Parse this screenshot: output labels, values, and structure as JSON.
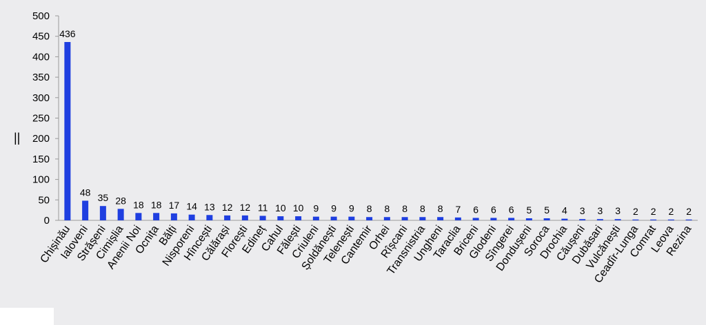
{
  "chart_data": {
    "type": "bar",
    "title": "",
    "xlabel": "",
    "ylabel": "",
    "ylim": [
      0,
      500
    ],
    "yticks": [
      0,
      50,
      100,
      150,
      200,
      250,
      300,
      350,
      400,
      450,
      500
    ],
    "ylabel_glyph": "||",
    "grid": false,
    "legend": "none",
    "bar_color": "#1f3fe0",
    "categories": [
      "Chișinău",
      "Ialoveni",
      "Strășeni",
      "Cimișlia",
      "Anenii Noi",
      "Ocnița",
      "Bălți",
      "Nisporeni",
      "Hîncești",
      "Călărași",
      "Florești",
      "Edineț",
      "Cahul",
      "Fălești",
      "Criuleni",
      "Șoldănești",
      "Telenești",
      "Cantemir",
      "Orhei",
      "Rîșcani",
      "Transnistria",
      "Ungheni",
      "Taraclia",
      "Briceni",
      "Glodeni",
      "Sîngerei",
      "Dondușeni",
      "Soroca",
      "Drochia",
      "Căușeni",
      "Dubăsari",
      "Vulcănești",
      "Ceadîr-Lunga",
      "Comrat",
      "Leova",
      "Rezina"
    ],
    "values": [
      436,
      48,
      35,
      28,
      18,
      18,
      17,
      14,
      13,
      12,
      12,
      11,
      10,
      10,
      9,
      9,
      9,
      8,
      8,
      8,
      8,
      8,
      7,
      6,
      6,
      6,
      5,
      5,
      4,
      3,
      3,
      3,
      2,
      2,
      2,
      2
    ]
  }
}
